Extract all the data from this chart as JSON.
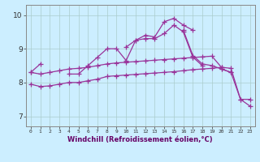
{
  "xlabel": "Windchill (Refroidissement éolien,°C)",
  "xlim": [
    -0.5,
    23.5
  ],
  "ylim": [
    6.7,
    10.3
  ],
  "yticks": [
    7,
    8,
    9,
    10
  ],
  "xticks": [
    0,
    1,
    2,
    3,
    4,
    5,
    6,
    7,
    8,
    9,
    10,
    11,
    12,
    13,
    14,
    15,
    16,
    17,
    18,
    19,
    20,
    21,
    22,
    23
  ],
  "bg_color": "#cceeff",
  "grid_color": "#aacccc",
  "line_color": "#993399",
  "line_width": 0.9,
  "marker": "+",
  "marker_size": 4,
  "lines": [
    [
      8.3,
      8.55,
      null,
      null,
      8.25,
      8.25,
      8.5,
      8.75,
      9.0,
      9.0,
      8.65,
      9.25,
      9.3,
      9.3,
      9.45,
      9.7,
      9.5,
      8.75,
      8.5,
      null,
      8.4,
      8.3,
      null,
      null
    ],
    [
      null,
      null,
      null,
      null,
      null,
      null,
      null,
      null,
      null,
      null,
      9.05,
      9.25,
      9.4,
      9.35,
      9.8,
      9.9,
      9.7,
      9.55,
      null,
      null,
      null,
      null,
      null,
      null
    ],
    [
      null,
      null,
      null,
      null,
      null,
      null,
      null,
      null,
      null,
      null,
      null,
      null,
      null,
      null,
      null,
      null,
      9.55,
      8.8,
      8.55,
      8.5,
      8.4,
      8.3,
      7.5,
      7.3
    ],
    [
      8.3,
      8.25,
      8.3,
      8.35,
      8.4,
      8.42,
      8.45,
      8.5,
      8.55,
      8.58,
      8.6,
      8.62,
      8.64,
      8.66,
      8.68,
      8.7,
      8.72,
      8.74,
      8.76,
      8.78,
      8.45,
      null,
      null,
      null
    ],
    [
      7.95,
      7.88,
      7.9,
      7.95,
      8.0,
      8.0,
      8.05,
      8.1,
      8.18,
      8.2,
      8.22,
      8.24,
      8.26,
      8.28,
      8.3,
      8.32,
      8.35,
      8.38,
      8.4,
      8.42,
      8.45,
      8.42,
      7.5,
      7.5
    ]
  ]
}
